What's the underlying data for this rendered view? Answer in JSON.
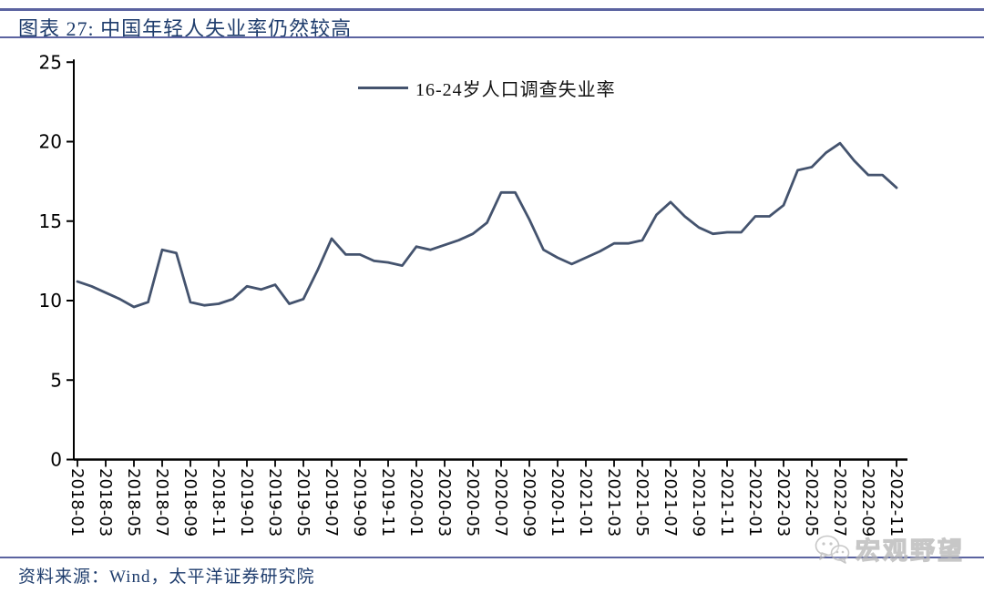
{
  "header": {
    "title": "图表 27:  中国年轻人失业率仍然较高"
  },
  "legend": {
    "label": "16-24岁人口调查失业率"
  },
  "footer": {
    "source": "资料来源：Wind，太平洋证券研究院"
  },
  "watermark": {
    "icon": "wechat-icon",
    "text": "宏观野望"
  },
  "colors": {
    "line": "#44536e",
    "rule": "#5b63a0",
    "heading_text": "#1f3d6d",
    "axis": "#000000",
    "watermark_gray": "#b5b5b5"
  },
  "chart_data": {
    "type": "line",
    "title": "图表 27: 中国年轻人失业率仍然较高",
    "xlabel": "",
    "ylabel": "",
    "ylim": [
      0,
      25
    ],
    "yticks": [
      0,
      5,
      10,
      15,
      20,
      25
    ],
    "xtick_every": 2,
    "grid": false,
    "legend_position": "top-center",
    "x": [
      "2018-01",
      "2018-02",
      "2018-03",
      "2018-04",
      "2018-05",
      "2018-06",
      "2018-07",
      "2018-08",
      "2018-09",
      "2018-10",
      "2018-11",
      "2018-12",
      "2019-01",
      "2019-02",
      "2019-03",
      "2019-04",
      "2019-05",
      "2019-06",
      "2019-07",
      "2019-08",
      "2019-09",
      "2019-10",
      "2019-11",
      "2019-12",
      "2020-01",
      "2020-02",
      "2020-03",
      "2020-04",
      "2020-05",
      "2020-06",
      "2020-07",
      "2020-08",
      "2020-09",
      "2020-10",
      "2020-11",
      "2020-12",
      "2021-01",
      "2021-02",
      "2021-03",
      "2021-04",
      "2021-05",
      "2021-06",
      "2021-07",
      "2021-08",
      "2021-09",
      "2021-10",
      "2021-11",
      "2021-12",
      "2022-01",
      "2022-02",
      "2022-03",
      "2022-04",
      "2022-05",
      "2022-06",
      "2022-07",
      "2022-08",
      "2022-09",
      "2022-10",
      "2022-11"
    ],
    "series": [
      {
        "name": "16-24岁人口调查失业率",
        "values": [
          11.2,
          10.9,
          10.5,
          10.1,
          9.6,
          9.9,
          13.2,
          13.0,
          9.9,
          9.7,
          9.8,
          10.1,
          10.9,
          10.7,
          11.0,
          9.8,
          10.1,
          11.9,
          13.9,
          12.9,
          12.9,
          12.5,
          12.4,
          12.2,
          13.4,
          13.2,
          13.5,
          13.8,
          14.2,
          14.9,
          16.8,
          16.8,
          15.1,
          13.2,
          12.7,
          12.3,
          12.7,
          13.1,
          13.6,
          13.6,
          13.8,
          15.4,
          16.2,
          15.3,
          14.6,
          14.2,
          14.3,
          14.3,
          15.3,
          15.3,
          16.0,
          18.2,
          18.4,
          19.3,
          19.9,
          18.8,
          17.9,
          17.9,
          17.1
        ]
      }
    ]
  }
}
